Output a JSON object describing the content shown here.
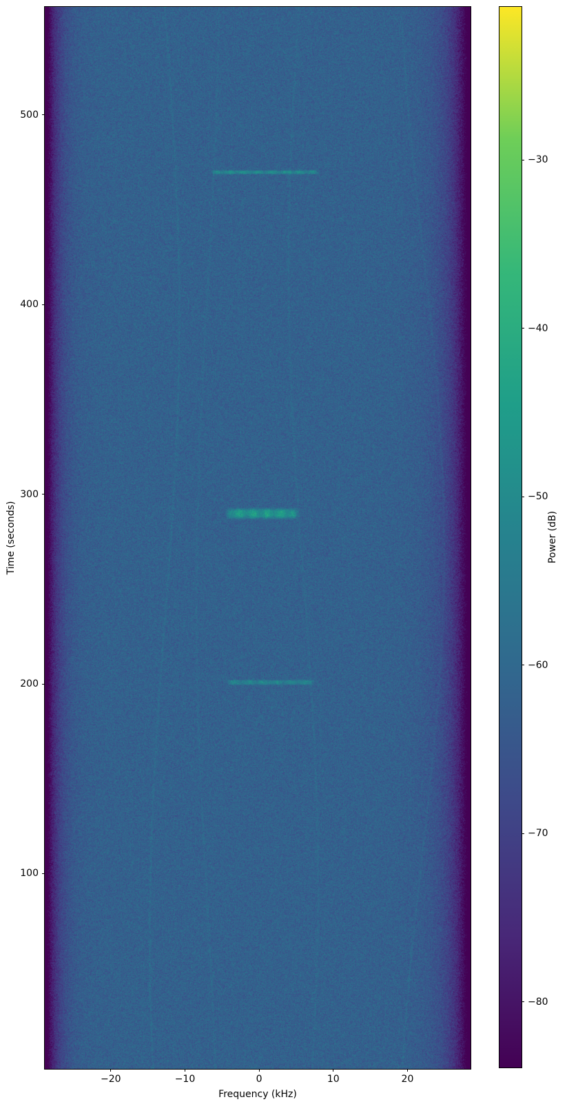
{
  "chart_data": {
    "type": "heatmap",
    "subtype": "spectrogram",
    "title": "",
    "xlabel": "Frequency (kHz)",
    "ylabel": "Time (seconds)",
    "colorbar_label": "Power (dB)",
    "xlim": [
      -28.9,
      28.5
    ],
    "ylim": [
      0,
      557
    ],
    "clim_db": [
      -84,
      -21
    ],
    "grid": false,
    "legend": false,
    "colormap": "viridis",
    "colormap_stops": [
      "#440154",
      "#482878",
      "#3e4989",
      "#31688e",
      "#26828e",
      "#1f9e89",
      "#35b779",
      "#6ece58",
      "#fde725"
    ],
    "x_ticks": {
      "values": [
        -20,
        -10,
        0,
        10,
        20
      ],
      "labels": [
        "−20",
        "−10",
        "0",
        "10",
        "20"
      ]
    },
    "y_ticks": {
      "values": [
        100,
        200,
        300,
        400,
        500
      ],
      "labels": [
        "100",
        "200",
        "300",
        "400",
        "500"
      ]
    },
    "colorbar_ticks": {
      "values": [
        -30,
        -40,
        -50,
        -60,
        -70,
        -80
      ],
      "labels": [
        "−30",
        "−40",
        "−50",
        "−60",
        "−70",
        "−80"
      ]
    },
    "background_noise": {
      "floor_db": -62,
      "std_db": 2.7,
      "edge_rolloff_db": 30,
      "edge_scale_khz_left": 1.5,
      "edge_scale_khz_right": 2.2
    },
    "bursts": [
      {
        "time_s": 470,
        "freq_start_khz": -6.3,
        "freq_end_khz": 7.8,
        "peak_db": -49,
        "duration_s": 2.0
      },
      {
        "time_s": 290,
        "freq_start_khz": -4.3,
        "freq_end_khz": 5.0,
        "peak_db": -44,
        "duration_s": 5.0
      },
      {
        "time_s": 201,
        "freq_start_khz": -4.3,
        "freq_end_khz": 7.3,
        "peak_db": -51,
        "duration_s": 2.5
      }
    ],
    "tones": [
      {
        "freq_khz": -12.8,
        "amp_db": 2.5,
        "drift_khz": 0.2
      },
      {
        "freq_khz": -7.0,
        "amp_db": 1.6,
        "drift_khz": 0.15
      },
      {
        "freq_khz": 5.9,
        "amp_db": 2.0,
        "drift_khz": 0.2
      },
      {
        "freq_khz": 21.9,
        "amp_db": 2.0,
        "drift_khz": 0.3
      }
    ]
  }
}
